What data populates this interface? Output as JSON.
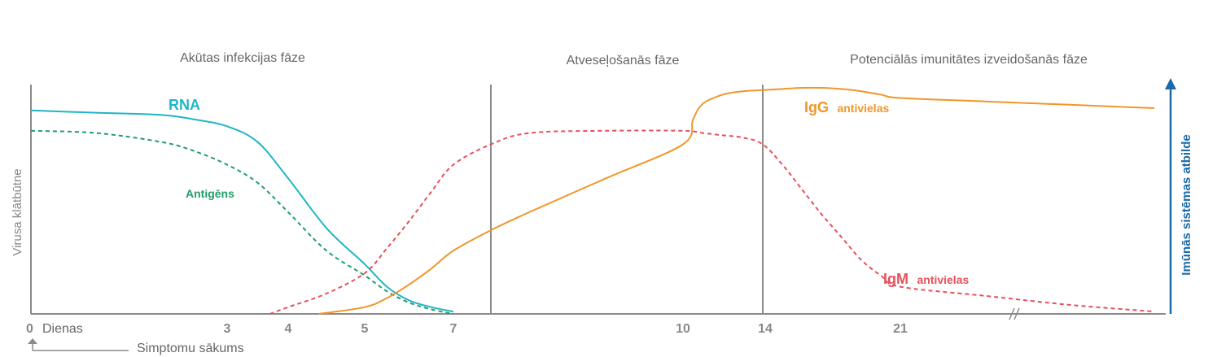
{
  "colors": {
    "rna": "#1fb5c6",
    "antigen": "#1f9e6a",
    "igm": "#e5505a",
    "igg": "#f0962a",
    "axis": "#8a8a8a",
    "divider": "#8a8a8a",
    "immune_arrow": "#1a6aa8"
  },
  "phases": {
    "acute": "Akūtas infekcijas fāze",
    "recovery": "Atveseļošanās fāze",
    "immunity": "Potenciālās imunitātes izveidošanās fāze"
  },
  "axes": {
    "left_label": "Virusa klātbūtne",
    "right_label": "Imūnās sistēmas atbilde",
    "x_start_label": "Dienas",
    "onset_label": "Simptomu sākums"
  },
  "chart_data": {
    "type": "line",
    "x_ticks": [
      "0",
      "3",
      "4",
      "5",
      "7",
      "10",
      "14",
      "21"
    ],
    "axis_break_after": "21",
    "series": [
      {
        "name": "RNA",
        "style": "solid",
        "x": [
          0,
          1,
          2,
          2.5,
          3,
          3.5,
          4,
          4.5,
          5,
          5.5,
          6,
          6.5,
          7
        ],
        "y": [
          0.9,
          0.89,
          0.88,
          0.86,
          0.83,
          0.76,
          0.6,
          0.38,
          0.22,
          0.12,
          0.06,
          0.03,
          0.01
        ]
      },
      {
        "name": "Antigēns",
        "style": "dashed",
        "x": [
          0,
          1,
          2,
          2.5,
          3,
          3.5,
          4,
          4.5,
          5,
          5.5,
          6,
          6.5,
          7
        ],
        "y": [
          0.81,
          0.8,
          0.76,
          0.72,
          0.66,
          0.58,
          0.45,
          0.28,
          0.17,
          0.1,
          0.05,
          0.02,
          0.0
        ]
      },
      {
        "name": "IgM antivielas",
        "label_main": "IgM",
        "label_rest": "antivielas",
        "style": "dashed",
        "x": [
          3.7,
          4,
          4.5,
          5,
          5.5,
          6,
          6.5,
          7,
          7.5,
          8,
          9,
          10,
          11,
          12,
          13,
          14,
          15,
          16,
          17,
          18,
          19,
          20,
          21,
          22,
          23,
          24
        ],
        "y": [
          0.0,
          0.03,
          0.09,
          0.18,
          0.29,
          0.41,
          0.54,
          0.66,
          0.75,
          0.8,
          0.81,
          0.81,
          0.8,
          0.79,
          0.78,
          0.75,
          0.66,
          0.55,
          0.44,
          0.34,
          0.24,
          0.17,
          0.12,
          0.08,
          0.04,
          0.01
        ]
      },
      {
        "name": "IgG antivielas",
        "label_main": "IgG",
        "label_rest": "antivielas",
        "style": "solid",
        "x": [
          4.4,
          5,
          5.5,
          6,
          6.5,
          7,
          7.5,
          8,
          9,
          10,
          10.5,
          11,
          12,
          13,
          14,
          15,
          16,
          17,
          18,
          19,
          20,
          21,
          22,
          23,
          24
        ],
        "y": [
          0.0,
          0.03,
          0.07,
          0.13,
          0.2,
          0.28,
          0.37,
          0.45,
          0.6,
          0.75,
          0.86,
          0.93,
          0.97,
          0.985,
          0.99,
          0.995,
          1.0,
          1.0,
          0.995,
          0.985,
          0.97,
          0.955,
          0.94,
          0.925,
          0.91
        ]
      }
    ],
    "phase_boundaries": [
      7.5,
      14
    ]
  }
}
